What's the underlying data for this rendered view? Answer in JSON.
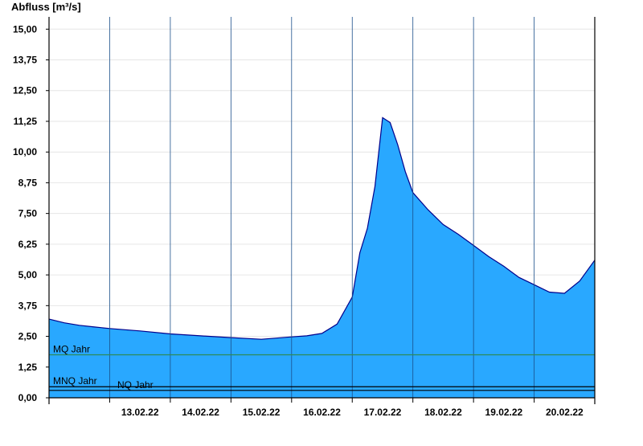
{
  "chart_data": {
    "type": "area",
    "ylabel": "Abfluss [m³/s]",
    "ylim": [
      0,
      15.5
    ],
    "xlim": [
      "12.02.22 00:00",
      "20.02.22 23:59"
    ],
    "yticks": [
      "0,00",
      "1,25",
      "2,50",
      "3,75",
      "5,00",
      "6,25",
      "7,50",
      "8,75",
      "10,00",
      "11,25",
      "12,50",
      "13,75",
      "15,00"
    ],
    "ytick_values": [
      0,
      1.25,
      2.5,
      3.75,
      5.0,
      6.25,
      7.5,
      8.75,
      10.0,
      11.25,
      12.5,
      13.75,
      15.0
    ],
    "xticks": [
      "13.02.22",
      "14.02.22",
      "15.02.22",
      "16.02.22",
      "17.02.22",
      "18.02.22",
      "19.02.22",
      "20.02.22"
    ],
    "grid": true,
    "series": [
      {
        "fill_color": "#29a8ff",
        "line_color": "#00008b",
        "x": [
          "12.02.22 00:00",
          "12.02.22 06:00",
          "12.02.22 12:00",
          "12.02.22 18:00",
          "13.02.22 00:00",
          "13.02.22 12:00",
          "14.02.22 00:00",
          "14.02.22 12:00",
          "15.02.22 00:00",
          "15.02.22 12:00",
          "16.02.22 00:00",
          "16.02.22 06:00",
          "16.02.22 12:00",
          "16.02.22 18:00",
          "17.02.22 00:00",
          "17.02.22 03:00",
          "17.02.22 06:00",
          "17.02.22 09:00",
          "17.02.22 12:00",
          "17.02.22 15:00",
          "17.02.22 18:00",
          "17.02.22 21:00",
          "18.02.22 00:00",
          "18.02.22 06:00",
          "18.02.22 12:00",
          "18.02.22 18:00",
          "19.02.22 00:00",
          "19.02.22 06:00",
          "19.02.22 12:00",
          "19.02.22 18:00",
          "20.02.22 00:00",
          "20.02.22 06:00",
          "20.02.22 12:00",
          "20.02.22 18:00",
          "20.02.22 23:59"
        ],
        "y": [
          3.2,
          3.05,
          2.95,
          2.88,
          2.82,
          2.72,
          2.6,
          2.52,
          2.45,
          2.38,
          2.48,
          2.52,
          2.62,
          3.0,
          4.1,
          5.9,
          6.9,
          8.6,
          11.4,
          11.2,
          10.3,
          9.2,
          8.35,
          7.65,
          7.05,
          6.65,
          6.2,
          5.75,
          5.35,
          4.9,
          4.6,
          4.3,
          4.25,
          4.75,
          5.6
        ]
      }
    ],
    "reference_lines": [
      {
        "label": "MQ Jahr",
        "value": 1.75,
        "color": "#2e8b57"
      },
      {
        "label": "MNQ Jahr",
        "value": 0.45,
        "color": "#000000"
      },
      {
        "label": "NQ Jahr",
        "value": 0.3,
        "color": "#000000"
      }
    ]
  }
}
